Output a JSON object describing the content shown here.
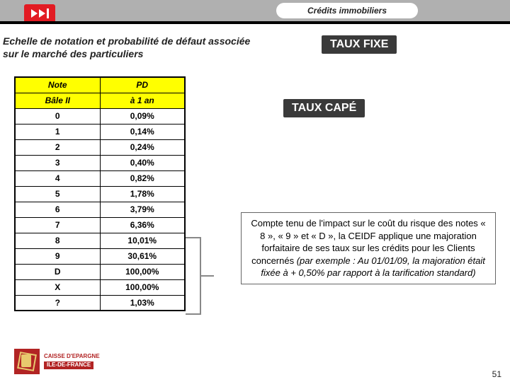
{
  "topbar": {
    "pill_label": "Crédits immobiliers",
    "bg_color": "#b0b0b0",
    "logo_color": "#e21b23"
  },
  "heading": "Echelle de notation et probabilité de défaut associée sur le marché des particuliers",
  "table": {
    "header_bg": "#ffff00",
    "columns": [
      {
        "line1": "Note",
        "line2": "Bâle II"
      },
      {
        "line1": "PD",
        "line2": "à 1 an"
      }
    ],
    "rows": [
      {
        "note": "0",
        "pd": "0,09%"
      },
      {
        "note": "1",
        "pd": "0,14%"
      },
      {
        "note": "2",
        "pd": "0,24%"
      },
      {
        "note": "3",
        "pd": "0,40%"
      },
      {
        "note": "4",
        "pd": "0,82%"
      },
      {
        "note": "5",
        "pd": "1,78%"
      },
      {
        "note": "6",
        "pd": "3,79%"
      },
      {
        "note": "7",
        "pd": "6,36%"
      },
      {
        "note": "8",
        "pd": "10,01%"
      },
      {
        "note": "9",
        "pd": "30,61%"
      },
      {
        "note": "D",
        "pd": "100,00%"
      },
      {
        "note": "X",
        "pd": "100,00%"
      },
      {
        "note": "?",
        "pd": "1,03%"
      }
    ]
  },
  "taux": {
    "fixe": "TAUX FIXE",
    "cape": "TAUX CAPÉ",
    "box_bg": "#3a3a3a",
    "box_fg": "#ffffff"
  },
  "paragraph": {
    "main": "Compte tenu de l'impact sur le coût du risque des notes « 8 », « 9 » et « D », la CEIDF applique une majoration forfaitaire de ses taux sur les crédits pour les Clients concernés ",
    "italic": "(par exemple : Au 01/01/09, la majoration était fixée à + 0,50% par rapport à la tarification standard)"
  },
  "footer": {
    "brand_line1": "CAISSE D'EPARGNE",
    "brand_line2": "ILE-DE-FRANCE",
    "brand_color": "#b22424"
  },
  "page_number": "51"
}
